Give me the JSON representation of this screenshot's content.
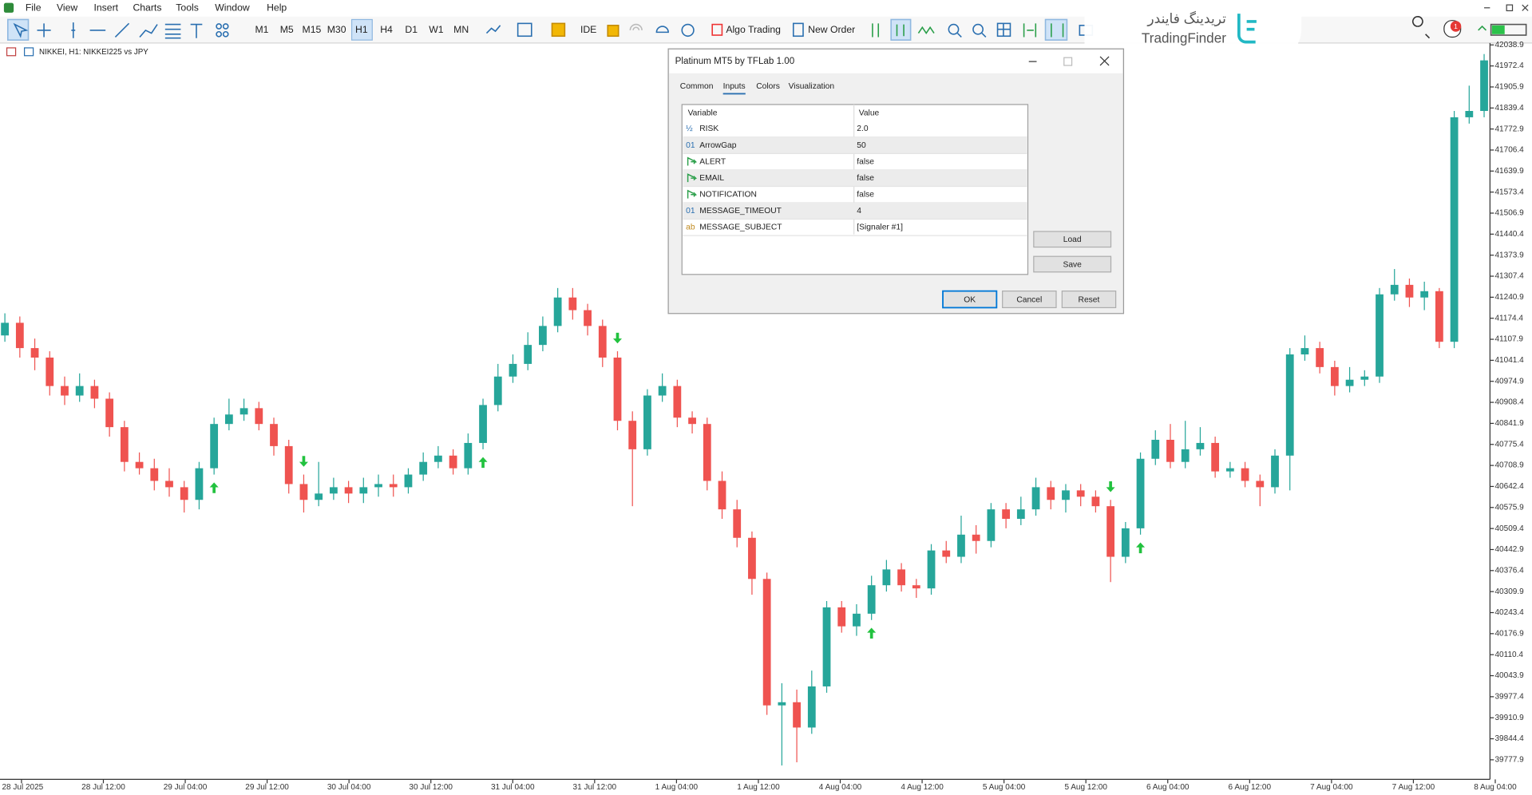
{
  "menu": [
    "File",
    "View",
    "Insert",
    "Charts",
    "Tools",
    "Window",
    "Help"
  ],
  "timeframes": [
    "M1",
    "M5",
    "M15",
    "M30",
    "H1",
    "H4",
    "D1",
    "W1",
    "MN"
  ],
  "active_timeframe": 4,
  "toolbar": {
    "ide": "IDE",
    "algo": "Algo Trading",
    "new_order": "New Order",
    "badge": "1"
  },
  "watermark": {
    "fa": "تریدینگ فایندر",
    "en": "TradingFinder"
  },
  "chart": {
    "type": "candlestick",
    "label": "NIKKEI, H1:  NIKKEI225 vs JPY",
    "x_labels": [
      "28 Jul 2025",
      "28 Jul 12:00",
      "29 Jul 04:00",
      "29 Jul 12:00",
      "30 Jul 04:00",
      "30 Jul 12:00",
      "31 Jul 04:00",
      "31 Jul 12:00",
      "1 Aug 04:00",
      "1 Aug 12:00",
      "4 Aug 04:00",
      "4 Aug 12:00",
      "5 Aug 04:00",
      "5 Aug 12:00",
      "6 Aug 04:00",
      "6 Aug 12:00",
      "7 Aug 04:00",
      "7 Aug 12:00",
      "8 Aug 04:00"
    ],
    "open": [
      41120,
      41160,
      41080,
      41050,
      40960,
      40930,
      40960,
      40920,
      40830,
      40720,
      40700,
      40660,
      40640,
      40600,
      40700,
      40840,
      40870,
      40890,
      40840,
      40770,
      40650,
      40600,
      40620,
      40640,
      40620,
      40640,
      40650,
      40640,
      40680,
      40720,
      40740,
      40700,
      40780,
      40900,
      40990,
      41030,
      41090,
      41150,
      41240,
      41200,
      41150,
      41050,
      40850,
      40760,
      40930,
      40960,
      40860,
      40840,
      40660,
      40570,
      40480,
      40350,
      39950,
      39960,
      39880,
      40010,
      40260,
      40200,
      40240,
      40330,
      40380,
      40330,
      40320,
      40440,
      40420,
      40490,
      40470,
      40570,
      40540,
      40570,
      40640,
      40600,
      40630,
      40610,
      40580,
      40420,
      40510,
      40730,
      40790,
      40720,
      40760,
      40780,
      40690,
      40700,
      40660,
      40640,
      40740,
      41060,
      41080,
      41020,
      40960,
      40980,
      40990,
      41250,
      41280,
      41240,
      41260,
      41100,
      41810,
      41830
    ],
    "high": [
      41190,
      41180,
      41110,
      41070,
      40990,
      41000,
      40980,
      40940,
      40850,
      40750,
      40730,
      40700,
      40660,
      40720,
      40860,
      40920,
      40920,
      40910,
      40860,
      40790,
      40680,
      40720,
      40670,
      40660,
      40670,
      40680,
      40680,
      40700,
      40750,
      40770,
      40760,
      40810,
      40920,
      41030,
      41060,
      41130,
      41180,
      41270,
      41270,
      41220,
      41170,
      41070,
      40880,
      40950,
      41000,
      40980,
      40880,
      40860,
      40690,
      40600,
      40500,
      40370,
      40020,
      40000,
      40060,
      40280,
      40280,
      40270,
      40360,
      40410,
      40400,
      40350,
      40460,
      40470,
      40550,
      40520,
      40590,
      40590,
      40610,
      40670,
      40660,
      40650,
      40650,
      40630,
      40600,
      40530,
      40750,
      40820,
      40840,
      40850,
      40830,
      40800,
      40720,
      40720,
      40680,
      40760,
      41080,
      41120,
      41100,
      41040,
      41020,
      41010,
      41270,
      41330,
      41300,
      41290,
      41270,
      41830,
      41910,
      42010
    ],
    "low": [
      41100,
      41050,
      41010,
      40930,
      40900,
      40910,
      40890,
      40800,
      40690,
      40680,
      40630,
      40610,
      40560,
      40570,
      40680,
      40820,
      40850,
      40820,
      40740,
      40620,
      40560,
      40580,
      40600,
      40590,
      40590,
      40610,
      40610,
      40620,
      40660,
      40700,
      40680,
      40680,
      40760,
      40880,
      40970,
      41010,
      41070,
      41130,
      41170,
      41120,
      41020,
      40820,
      40580,
      40740,
      40910,
      40830,
      40810,
      40630,
      40540,
      40450,
      40300,
      39920,
      39760,
      39770,
      39860,
      39990,
      40180,
      40170,
      40220,
      40310,
      40310,
      40290,
      40300,
      40400,
      40400,
      40430,
      40450,
      40510,
      40520,
      40550,
      40570,
      40560,
      40580,
      40560,
      40340,
      40400,
      40490,
      40710,
      40700,
      40700,
      40740,
      40670,
      40670,
      40640,
      40580,
      40620,
      40630,
      41040,
      41000,
      40930,
      40940,
      40960,
      40970,
      41230,
      41210,
      41200,
      41080,
      41080,
      41790,
      41810
    ],
    "close": [
      41160,
      41080,
      41050,
      40960,
      40930,
      40960,
      40920,
      40830,
      40720,
      40700,
      40660,
      40640,
      40600,
      40700,
      40840,
      40870,
      40890,
      40840,
      40770,
      40650,
      40600,
      40620,
      40640,
      40620,
      40640,
      40650,
      40640,
      40680,
      40720,
      40740,
      40700,
      40780,
      40900,
      40990,
      41030,
      41090,
      41150,
      41240,
      41200,
      41150,
      41050,
      40850,
      40760,
      40930,
      40960,
      40860,
      40840,
      40660,
      40570,
      40480,
      40350,
      39950,
      39960,
      39880,
      40010,
      40260,
      40200,
      40240,
      40330,
      40380,
      40330,
      40320,
      40440,
      40420,
      40490,
      40470,
      40570,
      40540,
      40570,
      40640,
      40600,
      40630,
      40610,
      40580,
      40420,
      40510,
      40730,
      40790,
      40720,
      40760,
      40780,
      40690,
      40700,
      40660,
      40640,
      40740,
      41060,
      41080,
      41020,
      40960,
      40980,
      40990,
      41250,
      41280,
      41240,
      41260,
      41100,
      41810,
      41830,
      41990
    ],
    "ylim": [
      39716,
      42045
    ],
    "yticks": [
      42038.9,
      41972.4,
      41905.9,
      41839.4,
      41772.9,
      41706.4,
      41639.9,
      41573.4,
      41506.9,
      41440.4,
      41373.9,
      41307.4,
      41240.9,
      41174.4,
      41107.9,
      41041.4,
      40974.9,
      40908.4,
      40841.9,
      40775.4,
      40708.9,
      40642.4,
      40575.9,
      40509.4,
      40442.9,
      40376.4,
      40309.9,
      40243.4,
      40176.9,
      40110.4,
      40043.9,
      39977.4,
      39910.9,
      39844.4,
      39777.9
    ],
    "up_color": "#26a69a",
    "down_color": "#ef5350",
    "arrow_color": "#22c23f",
    "buy_arrows": [
      14,
      32,
      58,
      76
    ],
    "sell_arrows": [
      20,
      41,
      74
    ]
  },
  "dialog": {
    "title": "Platinum MT5 by TFLab 1.00",
    "tabs": [
      "Common",
      "Inputs",
      "Colors",
      "Visualization"
    ],
    "active_tab": 1,
    "header": [
      "Variable",
      "Value"
    ],
    "rows": [
      {
        "icon": "½",
        "name": "RISK",
        "value": "2.0"
      },
      {
        "icon": "01",
        "name": "ArrowGap",
        "value": "50"
      },
      {
        "name": "ALERT",
        "value": "false"
      },
      {
        "name": "EMAIL",
        "value": "false"
      },
      {
        "name": "NOTIFICATION",
        "value": "false"
      },
      {
        "icon": "01",
        "name": "MESSAGE_TIMEOUT",
        "value": "4"
      },
      {
        "icon": "ab",
        "name": "MESSAGE_SUBJECT",
        "value": "[Signaler #1]"
      }
    ],
    "side_buttons": [
      "Load",
      "Save"
    ],
    "buttons": [
      "OK",
      "Cancel",
      "Reset"
    ]
  }
}
